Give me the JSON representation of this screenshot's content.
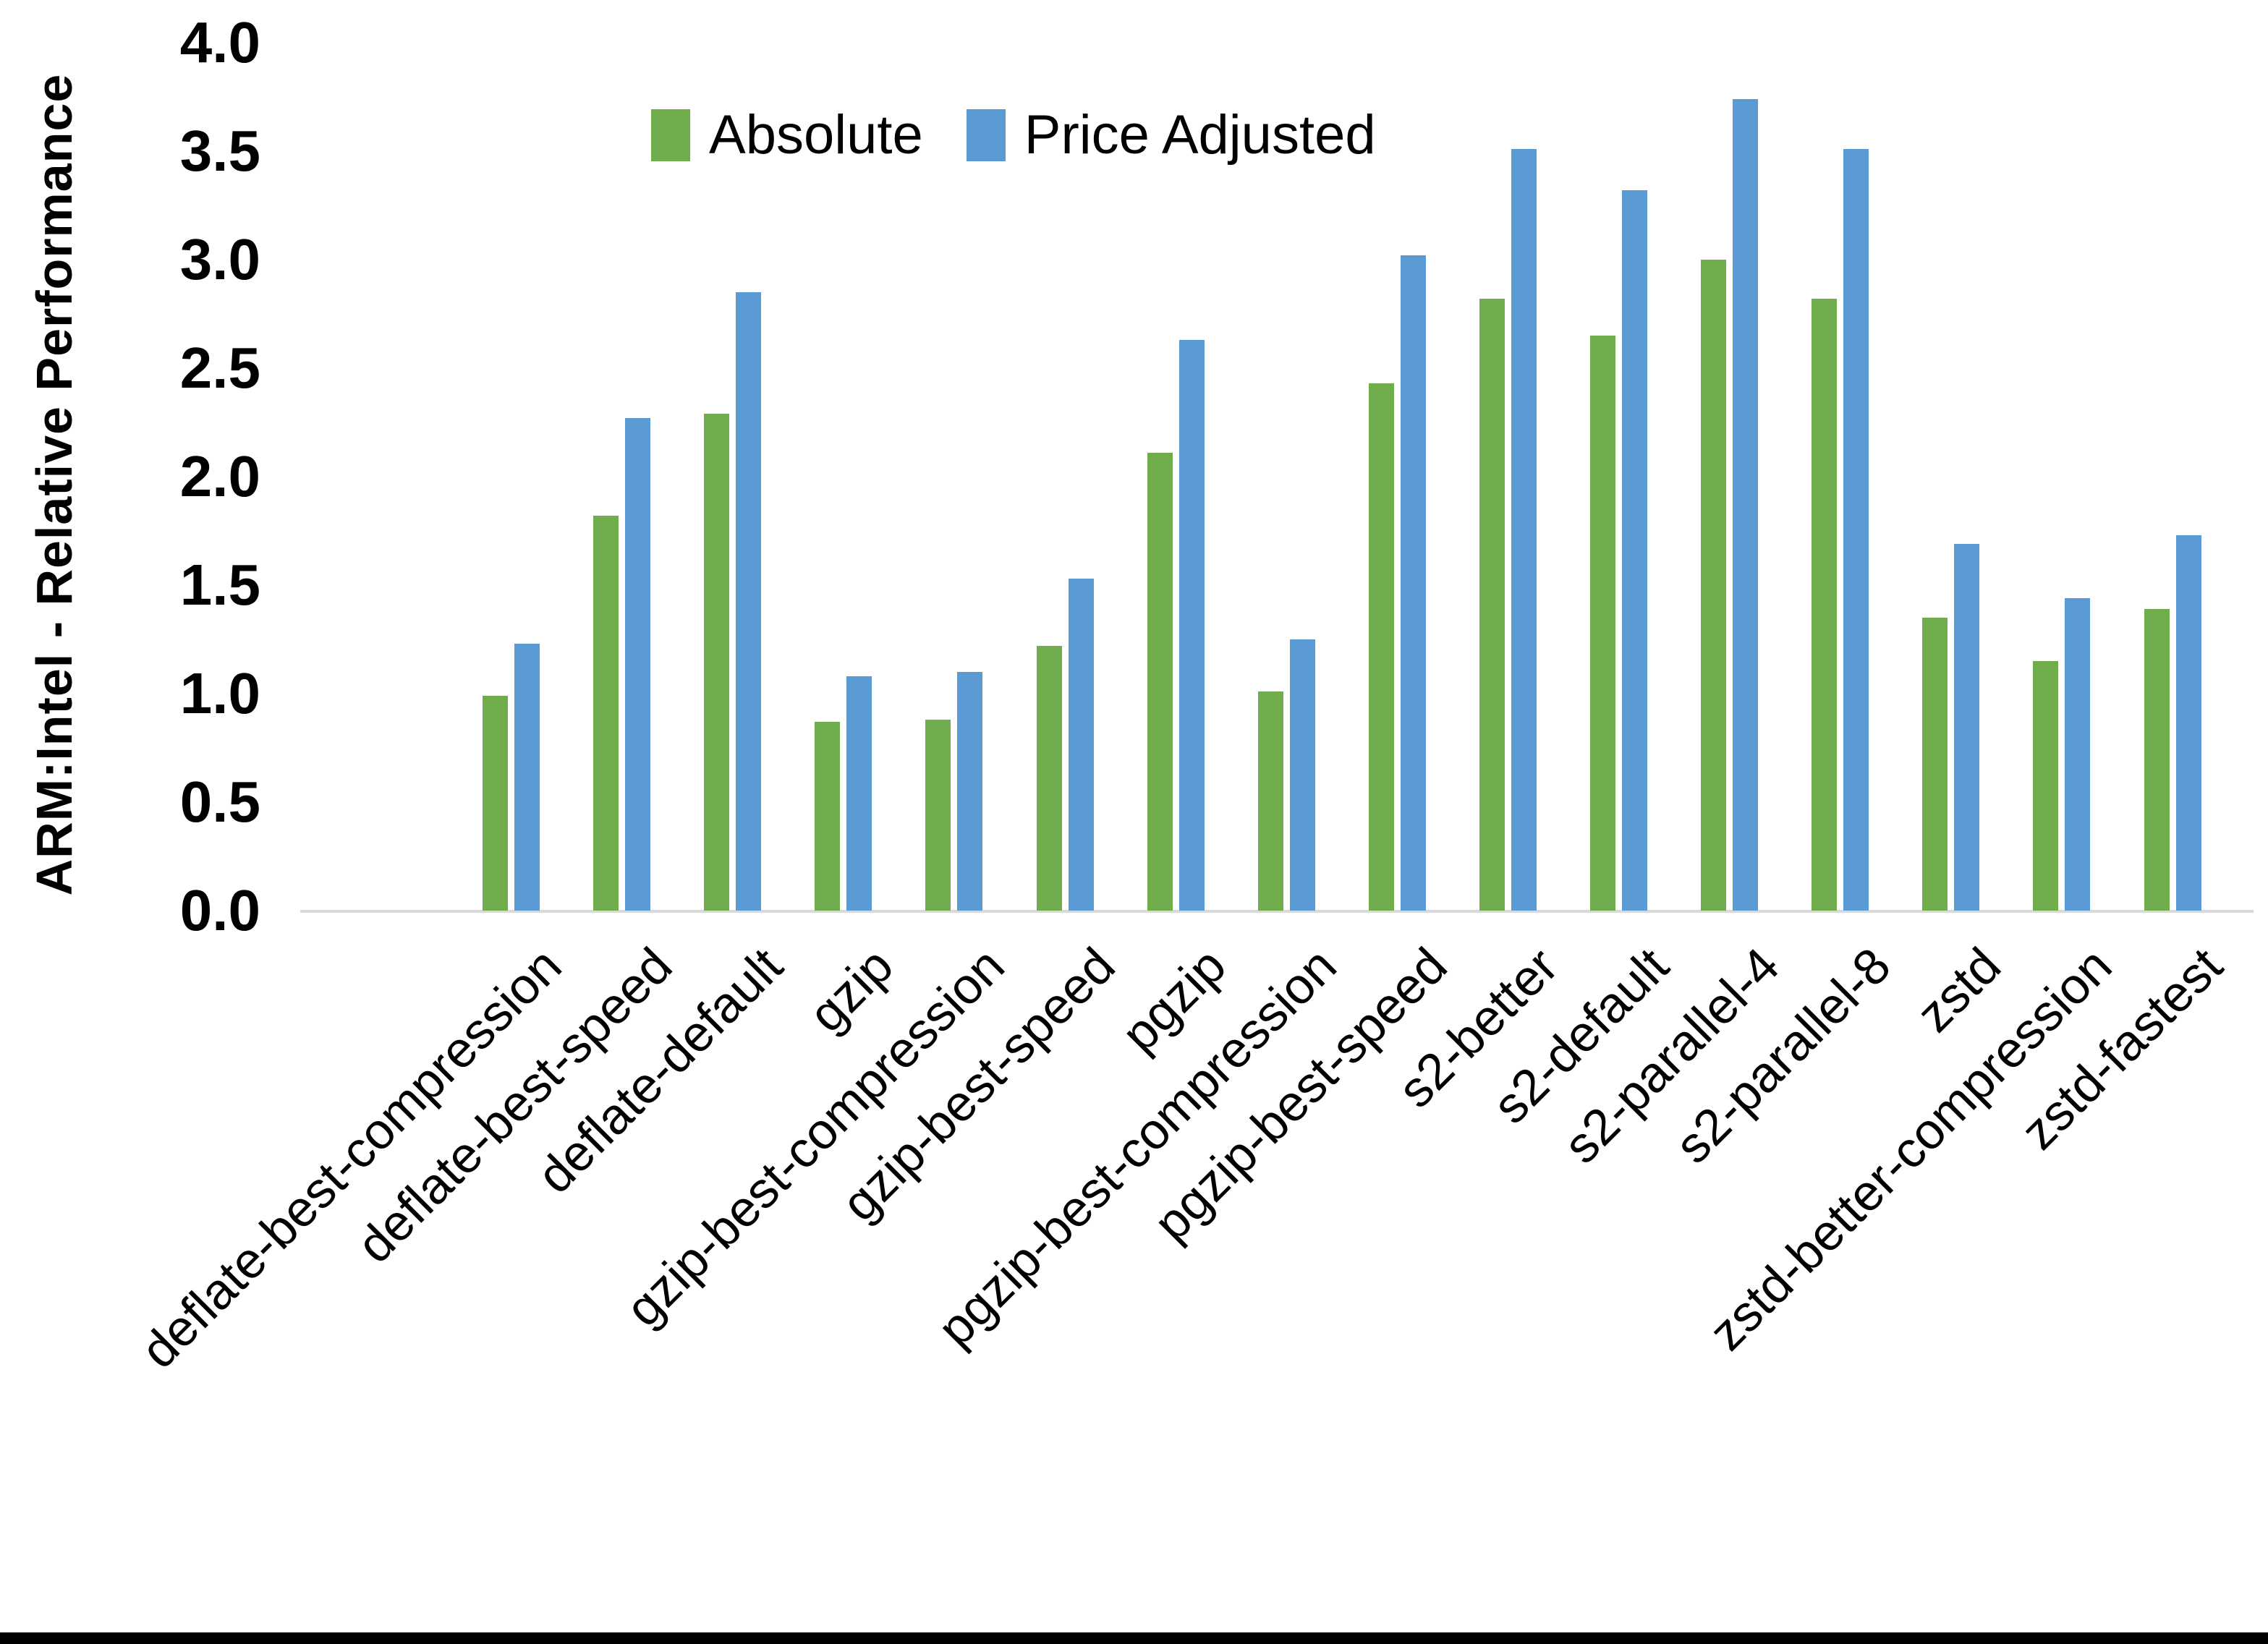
{
  "chart_data": {
    "type": "bar",
    "title": "",
    "xlabel": "",
    "ylabel": "ARM:Intel - Relative Performance",
    "ylim": [
      0.0,
      4.0
    ],
    "ytick_step": 0.5,
    "grid": false,
    "legend_position": "top-center",
    "categories": [
      "deflate-best-compression",
      "deflate-best-speed",
      "deflate-default",
      "gzip",
      "gzip-best-compression",
      "gzip-best-speed",
      "pgzip",
      "pgzip-best-compression",
      "pgzip-best-speed",
      "s2-better",
      "s2-default",
      "s2-parallel-4",
      "s2-parallel-8",
      "zstd",
      "zstd-better-compression",
      "zstd-fastest"
    ],
    "series": [
      {
        "name": "Absolute",
        "color": "#6FAC4C",
        "values": [
          0.99,
          1.82,
          2.29,
          0.87,
          0.88,
          1.22,
          2.11,
          1.01,
          2.43,
          2.82,
          2.65,
          3.0,
          2.82,
          1.35,
          1.15,
          1.39
        ]
      },
      {
        "name": "Price Adjusted",
        "color": "#5B9BD5",
        "values": [
          1.23,
          2.27,
          2.85,
          1.08,
          1.1,
          1.53,
          2.63,
          1.25,
          3.02,
          3.51,
          3.32,
          3.74,
          3.51,
          1.69,
          1.44,
          1.73
        ]
      }
    ],
    "axis_line_color": "#D9D9D9",
    "text_color": "#000000"
  }
}
